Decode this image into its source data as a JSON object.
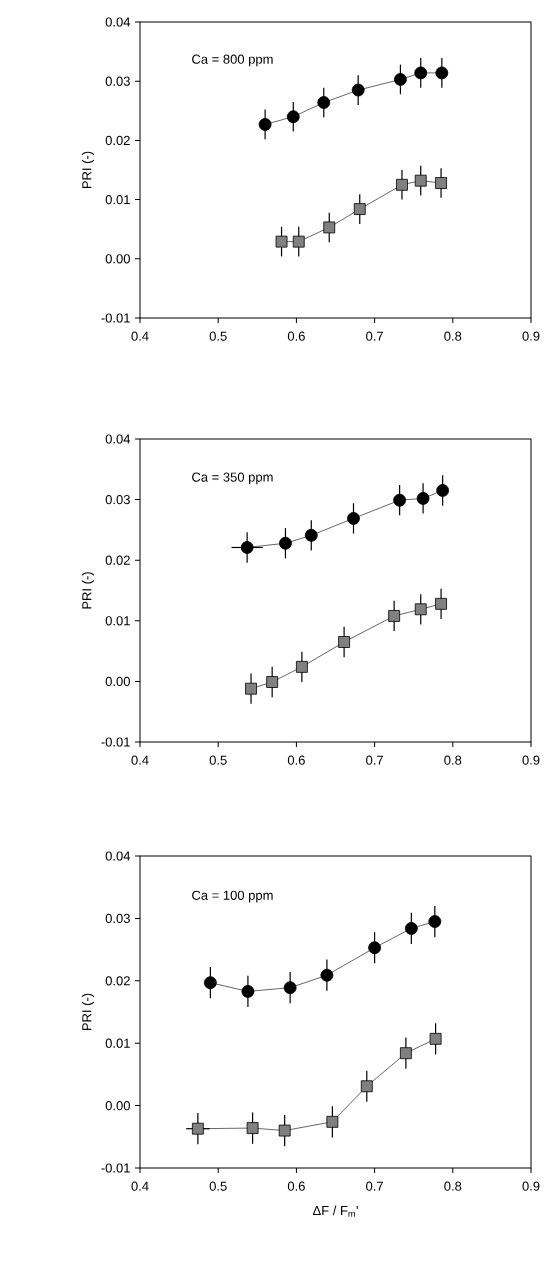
{
  "chart_data": [
    {
      "type": "line",
      "ylabel": "PRI (-)",
      "annotations": [
        "Ca = 800 ppm"
      ],
      "xlim": [
        0.4,
        0.9
      ],
      "ylim": [
        -0.01,
        0.04
      ],
      "xticks": [
        0.4,
        0.5,
        0.6,
        0.7,
        0.8,
        0.9
      ],
      "yticks": [
        {
          "value": -0.01,
          "label": "-0.01"
        },
        {
          "value": 0,
          "label": "0.00"
        },
        {
          "value": 0.01,
          "label": "0.01"
        },
        {
          "value": 0.02,
          "label": "0.02"
        },
        {
          "value": 0.03,
          "label": "0.03"
        },
        {
          "value": 0.04,
          "label": "0.04"
        }
      ],
      "grid": false,
      "line_style": "solid",
      "series": [
        {
          "color": "#000000",
          "marker": "circle",
          "x": [
            0.56,
            0.596,
            0.635,
            0.679,
            0.733,
            0.759,
            0.786
          ],
          "values": [
            0.0227,
            0.024,
            0.0264,
            0.0285,
            0.0303,
            0.0314,
            0.0314
          ],
          "errors": [
            0.0025,
            0.0025,
            0.0025,
            0.0025,
            0.0025,
            0.0025,
            0.0025
          ]
        },
        {
          "color": "#808080",
          "marker": "square",
          "x": [
            0.581,
            0.603,
            0.642,
            0.681,
            0.735,
            0.759,
            0.785
          ],
          "values": [
            0.0029,
            0.0029,
            0.0053,
            0.0084,
            0.0125,
            0.0132,
            0.0128
          ],
          "errors": [
            0.0025,
            0.0025,
            0.0025,
            0.0025,
            0.0025,
            0.0025,
            0.0025
          ]
        }
      ]
    },
    {
      "type": "line",
      "ylabel": "PRI (-)",
      "annotations": [
        "Ca = 350 ppm"
      ],
      "xlim": [
        0.4,
        0.9
      ],
      "ylim": [
        -0.01,
        0.04
      ],
      "xticks": [
        0.4,
        0.5,
        0.6,
        0.7,
        0.8,
        0.9
      ],
      "yticks": [
        {
          "value": -0.01,
          "label": "-0.01"
        },
        {
          "value": 0,
          "label": "0.00"
        },
        {
          "value": 0.01,
          "label": "0.01"
        },
        {
          "value": 0.02,
          "label": "0.02"
        },
        {
          "value": 0.03,
          "label": "0.03"
        },
        {
          "value": 0.04,
          "label": "0.04"
        }
      ],
      "grid": false,
      "line_style": "solid",
      "series": [
        {
          "color": "#000000",
          "marker": "circle",
          "x": [
            0.537,
            0.586,
            0.619,
            0.673,
            0.732,
            0.762,
            0.787
          ],
          "values": [
            0.0221,
            0.0228,
            0.0241,
            0.0269,
            0.0299,
            0.0302,
            0.0315
          ],
          "errors": [
            0.0025,
            0.0025,
            0.0025,
            0.0025,
            0.0025,
            0.0025,
            0.0025
          ],
          "xerrors": [
            0.02,
            null,
            null,
            null,
            null,
            null,
            null
          ]
        },
        {
          "color": "#808080",
          "marker": "square",
          "x": [
            0.542,
            0.569,
            0.607,
            0.661,
            0.725,
            0.759,
            0.785
          ],
          "values": [
            -0.0012,
            -0.0001,
            0.0024,
            0.0065,
            0.0108,
            0.0119,
            0.0128
          ],
          "errors": [
            0.0025,
            0.0025,
            0.0025,
            0.0025,
            0.0025,
            0.0025,
            0.0025
          ]
        }
      ]
    },
    {
      "type": "line",
      "xlabel": "ΔF / F$_{m}$'",
      "ylabel": "PRI (-)",
      "annotations": [
        "Ca = 100 ppm"
      ],
      "xlim": [
        0.4,
        0.9
      ],
      "ylim": [
        -0.01,
        0.04
      ],
      "xticks": [
        0.4,
        0.5,
        0.6,
        0.7,
        0.8,
        0.9
      ],
      "yticks": [
        {
          "value": -0.01,
          "label": "-0.01"
        },
        {
          "value": 0,
          "label": "0.00"
        },
        {
          "value": 0.01,
          "label": "0.01"
        },
        {
          "value": 0.02,
          "label": "0.02"
        },
        {
          "value": 0.03,
          "label": "0.03"
        },
        {
          "value": 0.04,
          "label": "0.04"
        }
      ],
      "grid": false,
      "line_style": "solid",
      "series": [
        {
          "color": "#000000",
          "marker": "circle",
          "x": [
            0.49,
            0.538,
            0.592,
            0.639,
            0.7,
            0.747,
            0.777
          ],
          "values": [
            0.0197,
            0.0183,
            0.0189,
            0.0209,
            0.0253,
            0.0284,
            0.0295
          ],
          "errors": [
            0.0025,
            0.0025,
            0.0025,
            0.0025,
            0.0025,
            0.0025,
            0.0025
          ]
        },
        {
          "color": "#808080",
          "marker": "square",
          "x": [
            0.474,
            0.544,
            0.585,
            0.646,
            0.69,
            0.74,
            0.778
          ],
          "values": [
            -0.0037,
            -0.0036,
            -0.004,
            -0.0026,
            0.0031,
            0.0084,
            0.0107
          ],
          "errors": [
            0.0025,
            0.0025,
            0.0025,
            0.0025,
            0.0025,
            0.0025,
            0.0025
          ],
          "xerrors": [
            0.015,
            null,
            null,
            null,
            null,
            null,
            null
          ]
        }
      ]
    }
  ]
}
